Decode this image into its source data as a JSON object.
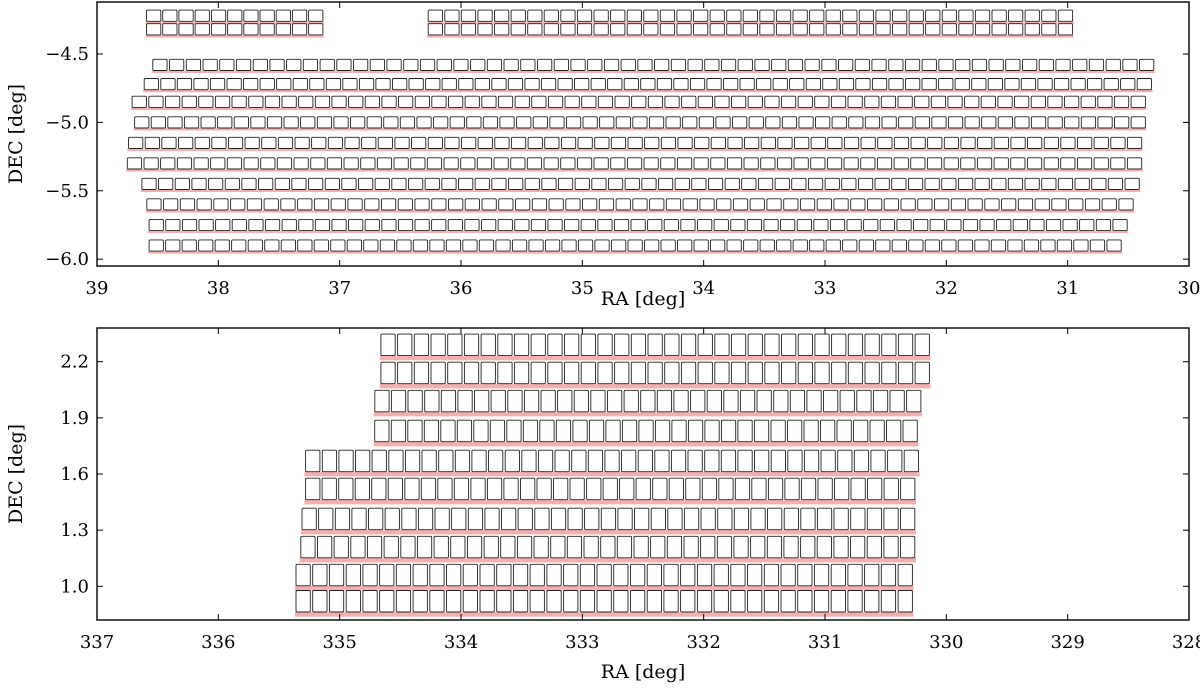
{
  "chart_data": [
    {
      "type": "scatter",
      "xlabel": "RA [deg]",
      "ylabel": "DEC [deg]",
      "xlim": [
        39,
        30
      ],
      "ylim": [
        -6.05,
        -4.12
      ],
      "x_ticks": [
        "39",
        "38",
        "37",
        "36",
        "35",
        "34",
        "33",
        "32",
        "31",
        "30"
      ],
      "y_ticks": [
        "-4.5",
        "-5.0",
        "-5.5",
        "-6.0"
      ],
      "grid": false,
      "legend": "none",
      "colors": {
        "point_a": "#1a14c8",
        "point_b": "#e01a1a",
        "border": "#222222"
      },
      "rows": [
        {
          "dec": -4.22,
          "segments": [
            [
              38.6,
              37.13
            ],
            [
              36.28,
              30.95
            ]
          ]
        },
        {
          "dec": -4.32,
          "segments": [
            [
              38.6,
              37.13
            ],
            [
              36.28,
              30.95
            ]
          ]
        },
        {
          "dec": -4.58,
          "segments": [
            [
              38.55,
              30.28
            ]
          ]
        },
        {
          "dec": -4.72,
          "segments": [
            [
              38.62,
              30.3
            ]
          ]
        },
        {
          "dec": -4.85,
          "segments": [
            [
              38.72,
              30.35
            ]
          ]
        },
        {
          "dec": -5.0,
          "segments": [
            [
              38.7,
              30.35
            ]
          ]
        },
        {
          "dec": -5.15,
          "segments": [
            [
              38.75,
              30.38
            ]
          ]
        },
        {
          "dec": -5.3,
          "segments": [
            [
              38.76,
              30.38
            ]
          ]
        },
        {
          "dec": -5.45,
          "segments": [
            [
              38.64,
              30.4
            ]
          ]
        },
        {
          "dec": -5.6,
          "segments": [
            [
              38.6,
              30.45
            ]
          ]
        },
        {
          "dec": -5.75,
          "segments": [
            [
              38.58,
              30.5
            ]
          ]
        },
        {
          "dec": -5.9,
          "segments": [
            [
              38.58,
              30.55
            ]
          ]
        }
      ],
      "gaps": [
        [
          38.35,
          -4.72
        ],
        [
          37.88,
          -4.85
        ],
        [
          35.6,
          -5.0
        ],
        [
          34.72,
          -5.45
        ],
        [
          32.05,
          -5.45
        ],
        [
          30.35,
          -4.85
        ],
        [
          36.28,
          -4.58
        ],
        [
          38.52,
          -5.6
        ],
        [
          35.62,
          -5.9
        ],
        [
          34.7,
          -5.9
        ]
      ]
    },
    {
      "type": "scatter",
      "xlabel": "RA [deg]",
      "ylabel": "DEC [deg]",
      "xlim": [
        337,
        328
      ],
      "ylim": [
        0.82,
        2.38
      ],
      "x_ticks": [
        "337",
        "336",
        "335",
        "334",
        "333",
        "332",
        "331",
        "330",
        "329",
        "328"
      ],
      "y_ticks": [
        "2.2",
        "1.9",
        "1.6",
        "1.3",
        "1.0"
      ],
      "grid": false,
      "legend": "none",
      "colors": {
        "point_a": "#1a14c8",
        "point_b": "#e01a1a",
        "border": "#222222"
      },
      "rows": [
        {
          "dec": 2.29,
          "segments": [
            [
              334.67,
              330.13
            ]
          ]
        },
        {
          "dec": 2.14,
          "segments": [
            [
              334.67,
              330.13
            ]
          ]
        },
        {
          "dec": 1.99,
          "segments": [
            [
              334.72,
              330.2
            ]
          ]
        },
        {
          "dec": 1.83,
          "segments": [
            [
              334.72,
              330.23
            ]
          ]
        },
        {
          "dec": 1.67,
          "segments": [
            [
              335.29,
              330.22
            ]
          ]
        },
        {
          "dec": 1.52,
          "segments": [
            [
              335.29,
              330.25
            ]
          ]
        },
        {
          "dec": 1.36,
          "segments": [
            [
              335.32,
              330.25
            ]
          ]
        },
        {
          "dec": 1.21,
          "segments": [
            [
              335.33,
              330.25
            ]
          ]
        },
        {
          "dec": 1.06,
          "segments": [
            [
              335.37,
              330.27
            ]
          ]
        },
        {
          "dec": 0.92,
          "segments": [
            [
              335.37,
              330.27
            ]
          ]
        }
      ],
      "gaps": [
        [
          332.8,
          2.29
        ],
        [
          332.55,
          2.29
        ],
        [
          331.15,
          2.29
        ],
        [
          334.28,
          1.99
        ],
        [
          331.65,
          1.99
        ],
        [
          334.75,
          1.83
        ],
        [
          334.55,
          1.67
        ],
        [
          335.07,
          1.67
        ],
        [
          333.38,
          1.67
        ],
        [
          333.08,
          1.67
        ],
        [
          332.85,
          1.67
        ],
        [
          331.65,
          1.67
        ],
        [
          330.37,
          1.83
        ],
        [
          334.45,
          1.52
        ],
        [
          330.42,
          1.52
        ],
        [
          334.85,
          1.36
        ]
      ]
    }
  ]
}
